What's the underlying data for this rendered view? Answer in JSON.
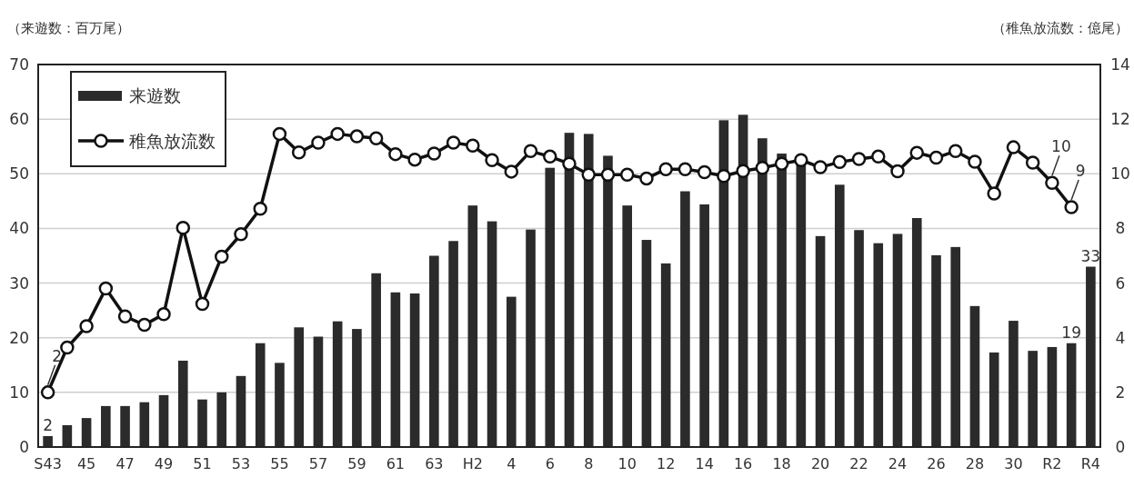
{
  "chart_data": {
    "type": "bar",
    "ylabel": "（来遊数：百万尾）",
    "y2label": "（稚魚放流数：億尾）",
    "categories": [
      "S43",
      null,
      "45",
      null,
      "47",
      null,
      "49",
      null,
      "51",
      null,
      "53",
      null,
      "55",
      null,
      "57",
      null,
      "59",
      null,
      "61",
      null,
      "63",
      null,
      "H2",
      null,
      "4",
      null,
      "6",
      null,
      "8",
      null,
      "10",
      null,
      "12",
      null,
      "14",
      null,
      "16",
      null,
      "18",
      null,
      "20",
      null,
      "22",
      null,
      "24",
      null,
      "26",
      null,
      "28",
      null,
      "30",
      null,
      "R2",
      null,
      "R4"
    ],
    "ylim": [
      0,
      70
    ],
    "yticks": [
      0,
      10,
      20,
      30,
      40,
      50,
      60,
      70
    ],
    "y2lim": [
      0,
      14
    ],
    "y2ticks": [
      0,
      2,
      4,
      6,
      8,
      10,
      12,
      14
    ],
    "grid": "y",
    "legend": "top left",
    "series": [
      {
        "name": "来遊数",
        "color": "#2b2b2b",
        "values": [
          2,
          4,
          5.3,
          7.5,
          7.5,
          8.2,
          9.5,
          15.8,
          8.7,
          10,
          13,
          19,
          15.4,
          21.9,
          20.2,
          23,
          21.6,
          31.8,
          28.3,
          28.1,
          35,
          37.7,
          44.2,
          41.3,
          27.5,
          39.8,
          51.1,
          57.5,
          57.3,
          53.3,
          44.2,
          37.9,
          33.6,
          46.8,
          44.4,
          59.8,
          60.8,
          56.5,
          53.7,
          51.7,
          38.6,
          48,
          39.7,
          37.3,
          39,
          41.9,
          35.1,
          36.6,
          25.8,
          17.3,
          23.1,
          17.6,
          18.3,
          19,
          33
        ],
        "value_labels": [
          "2",
          null,
          null,
          null,
          null,
          null,
          null,
          null,
          null,
          null,
          null,
          null,
          null,
          null,
          null,
          null,
          null,
          null,
          null,
          null,
          null,
          null,
          null,
          null,
          null,
          null,
          null,
          null,
          null,
          null,
          null,
          null,
          null,
          null,
          null,
          null,
          null,
          null,
          null,
          null,
          null,
          null,
          null,
          null,
          null,
          null,
          null,
          null,
          null,
          null,
          null,
          null,
          null,
          "19",
          "33"
        ]
      },
      {
        "name": "稚魚放流数",
        "type": "line",
        "axis": "y2",
        "color": "#111111",
        "marker": "circle",
        "values": [
          2,
          3.64,
          4.42,
          5.8,
          4.78,
          4.47,
          4.86,
          8.02,
          5.24,
          6.97,
          7.79,
          8.72,
          11.46,
          10.78,
          11.14,
          11.46,
          11.37,
          11.3,
          10.72,
          10.52,
          10.74,
          11.14,
          11.03,
          10.5,
          10.08,
          10.83,
          10.63,
          10.37,
          9.97,
          9.97,
          9.97,
          9.83,
          10.17,
          10.17,
          10.06,
          9.92,
          10.1,
          10.22,
          10.37,
          10.5,
          10.24,
          10.43,
          10.54,
          10.63,
          10.09,
          10.77,
          10.59,
          10.83,
          10.44,
          9.28,
          10.97,
          10.41,
          9.67,
          8.78,
          null
        ],
        "value_labels": [
          "2",
          null,
          null,
          null,
          null,
          null,
          null,
          null,
          null,
          null,
          null,
          null,
          null,
          null,
          null,
          null,
          null,
          null,
          null,
          null,
          null,
          null,
          null,
          null,
          null,
          null,
          null,
          null,
          null,
          null,
          null,
          null,
          null,
          null,
          null,
          null,
          null,
          null,
          null,
          null,
          null,
          null,
          null,
          null,
          null,
          null,
          null,
          null,
          null,
          null,
          null,
          null,
          "10",
          "9",
          null
        ]
      }
    ]
  }
}
